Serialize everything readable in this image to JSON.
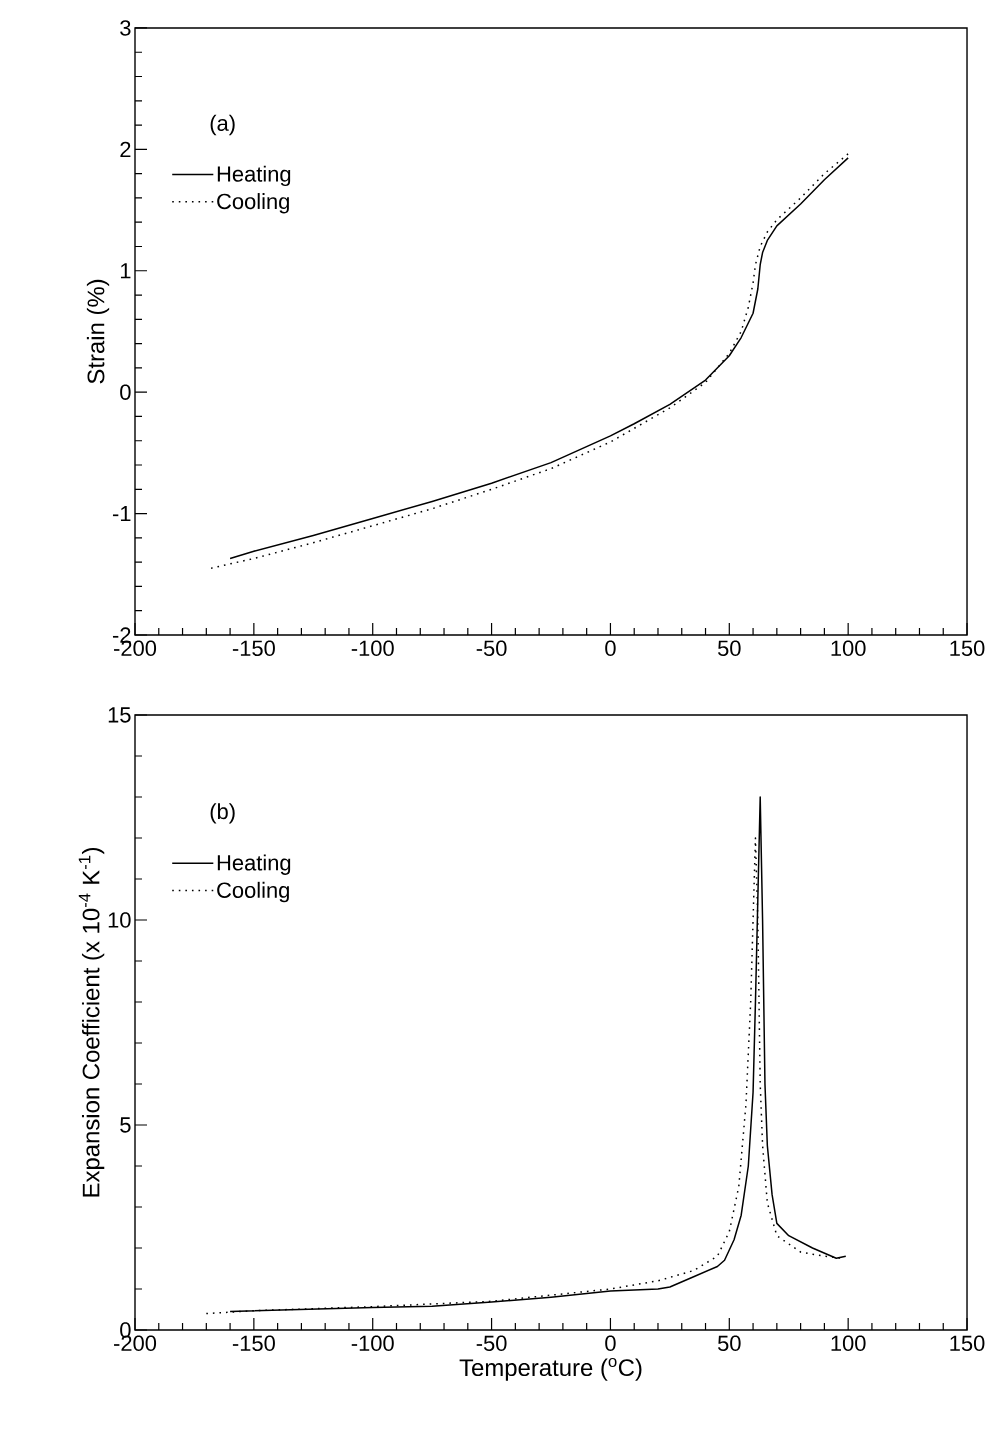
{
  "chart_data": [
    {
      "type": "line",
      "ylabel": "Strain (%)",
      "annotations": [
        "(a)"
      ],
      "legend": "top left",
      "xlim": [
        -200,
        150
      ],
      "xticks": [
        -200,
        -150,
        -100,
        -50,
        0,
        50,
        100,
        150
      ],
      "ylim": [
        -2,
        3
      ],
      "yticks": [
        -2,
        -1,
        0,
        1,
        2,
        3
      ],
      "series": [
        {
          "name": "Heating",
          "color": "#000000",
          "line_style": "solid",
          "x": [
            -160,
            -150,
            -125,
            -100,
            -75,
            -50,
            -25,
            0,
            10,
            25,
            40,
            50,
            55,
            60,
            62,
            63,
            64,
            66,
            70,
            80,
            90,
            100
          ],
          "values": [
            -1.37,
            -1.31,
            -1.18,
            -1.04,
            -0.9,
            -0.75,
            -0.58,
            -0.36,
            -0.26,
            -0.1,
            0.1,
            0.3,
            0.45,
            0.65,
            0.85,
            1.05,
            1.15,
            1.25,
            1.37,
            1.55,
            1.75,
            1.93
          ]
        },
        {
          "name": "Cooling",
          "color": "#000000",
          "line_style": "dotted",
          "x": [
            -168,
            -150,
            -125,
            -100,
            -75,
            -50,
            -25,
            0,
            25,
            40,
            50,
            55,
            58,
            60,
            61,
            63,
            66,
            70,
            80,
            90,
            101
          ],
          "values": [
            -1.45,
            -1.37,
            -1.24,
            -1.1,
            -0.96,
            -0.8,
            -0.63,
            -0.41,
            -0.13,
            0.08,
            0.32,
            0.5,
            0.7,
            0.9,
            1.05,
            1.2,
            1.32,
            1.42,
            1.6,
            1.8,
            1.98
          ]
        }
      ]
    },
    {
      "type": "line",
      "xlabel": "Temperature ($^{o}$C)",
      "ylabel": "Expansion Coefficient (x 10$^{-4}$ K$^{-1}$)",
      "annotations": [
        "(b)"
      ],
      "legend": "top left",
      "xlim": [
        -200,
        150
      ],
      "xticks": [
        -200,
        -150,
        -100,
        -50,
        0,
        50,
        100,
        150
      ],
      "ylim": [
        0,
        15
      ],
      "yticks": [
        0,
        5,
        10,
        15
      ],
      "series": [
        {
          "name": "Heating",
          "color": "#000000",
          "line_style": "solid",
          "x": [
            -160,
            -100,
            -75,
            -50,
            -25,
            0,
            20,
            25,
            35,
            45,
            48,
            52,
            55,
            58,
            60,
            61,
            62,
            63,
            64,
            65,
            66,
            68,
            70,
            75,
            85,
            95,
            99
          ],
          "values": [
            0.45,
            0.55,
            0.58,
            0.68,
            0.8,
            0.95,
            1.0,
            1.05,
            1.3,
            1.55,
            1.7,
            2.2,
            2.8,
            4.0,
            5.8,
            8,
            10.5,
            13.0,
            10,
            6,
            4.5,
            3.3,
            2.6,
            2.3,
            2.0,
            1.75,
            1.8
          ]
        },
        {
          "name": "Cooling",
          "color": "#000000",
          "line_style": "dotted",
          "x": [
            -170,
            -150,
            -100,
            -50,
            -25,
            0,
            20,
            35,
            45,
            50,
            54,
            57,
            59,
            60,
            61,
            62,
            63,
            64,
            66,
            70,
            80,
            90,
            97
          ],
          "values": [
            0.4,
            0.47,
            0.57,
            0.7,
            0.85,
            1.0,
            1.2,
            1.45,
            1.8,
            2.4,
            3.5,
            5.5,
            8,
            10,
            12,
            10,
            6,
            4.5,
            3.1,
            2.3,
            1.9,
            1.8,
            1.75
          ]
        }
      ]
    }
  ]
}
